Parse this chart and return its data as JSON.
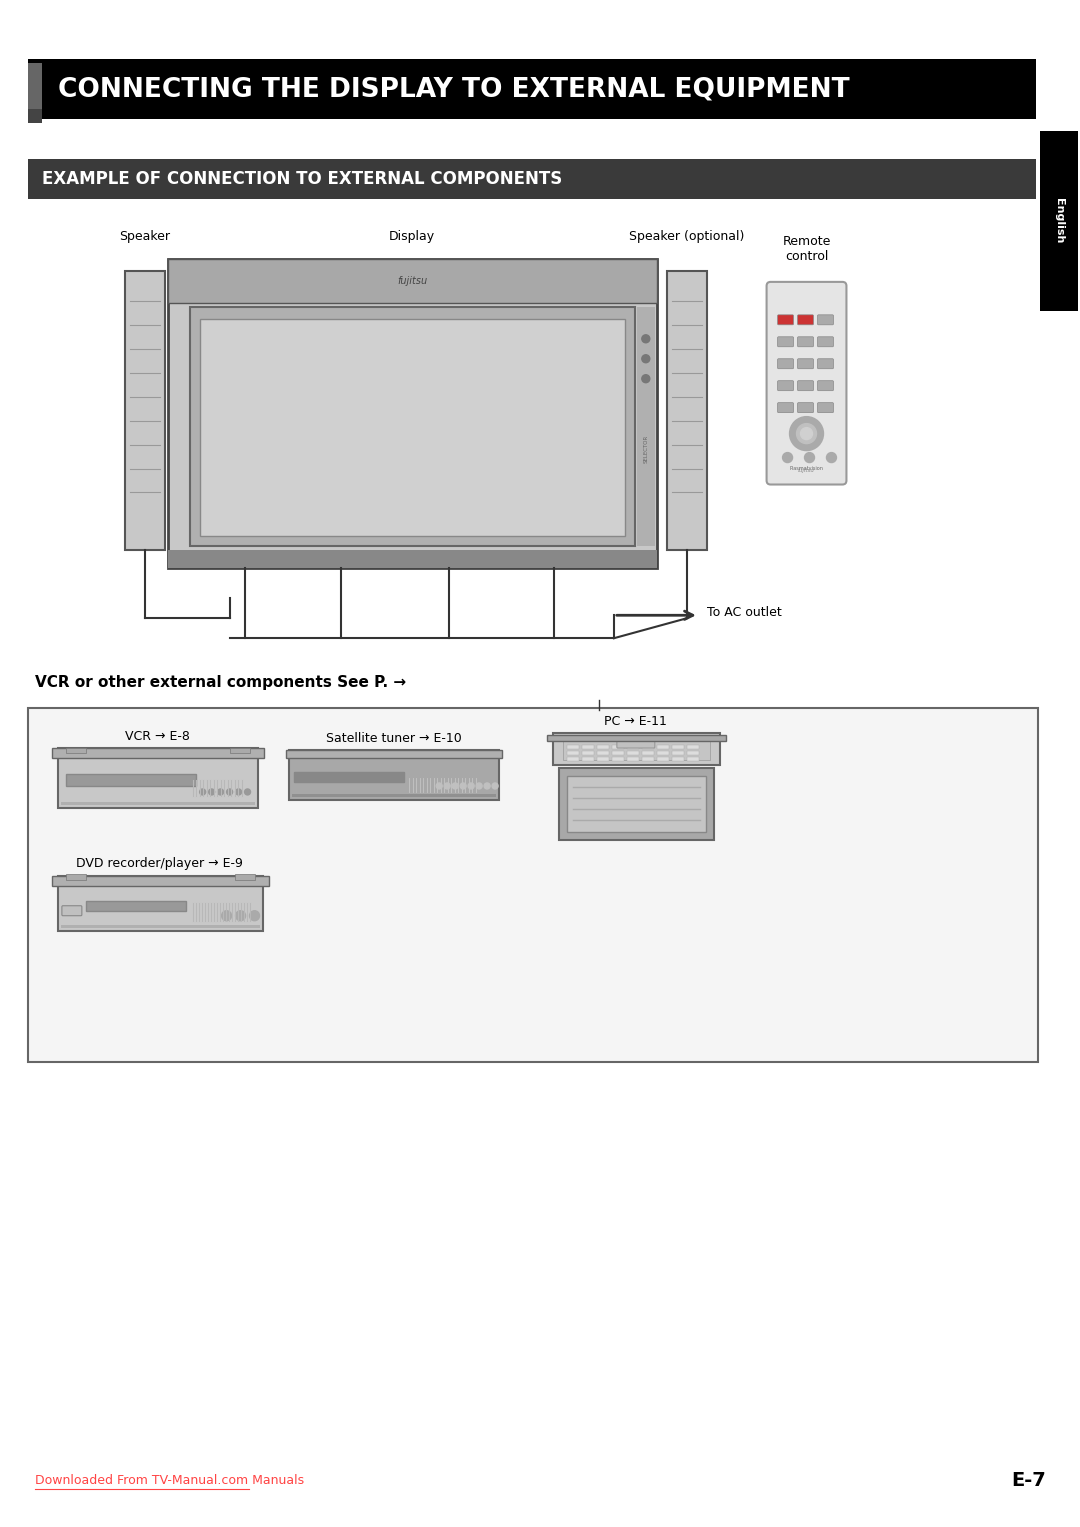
{
  "title_main": "CONNECTING THE DISPLAY TO EXTERNAL EQUIPMENT",
  "title_sub": "EXAMPLE OF CONNECTION TO EXTERNAL COMPONENTS",
  "label_speaker": "Speaker",
  "label_display": "Display",
  "label_speaker_opt": "Speaker (optional)",
  "label_remote": "Remote\ncontrol",
  "label_ac": "To AC outlet",
  "label_vcr_section": "VCR or other external components See P. →",
  "label_vcr": "VCR → E-8",
  "label_sat": "Satellite tuner → E-10",
  "label_dvd": "DVD recorder/player → E-9",
  "label_pc": "PC → E-11",
  "label_fujitsu": "fujitsu",
  "footer_link": "Downloaded From TV-Manual.com Manuals",
  "footer_page": "E-7",
  "bg_color": "#ffffff",
  "header_bg": "#000000",
  "header_text_color": "#ffffff",
  "subheader_bg": "#3a3a3a",
  "subheader_text_color": "#ffffff",
  "english_tab_bg": "#000000",
  "english_tab_text": "#ffffff",
  "link_color": "#ff4444",
  "gray_light": "#c8c8c8",
  "gray_medium": "#a8a8a8",
  "gray_dark": "#606060",
  "gray_frame": "#888888"
}
